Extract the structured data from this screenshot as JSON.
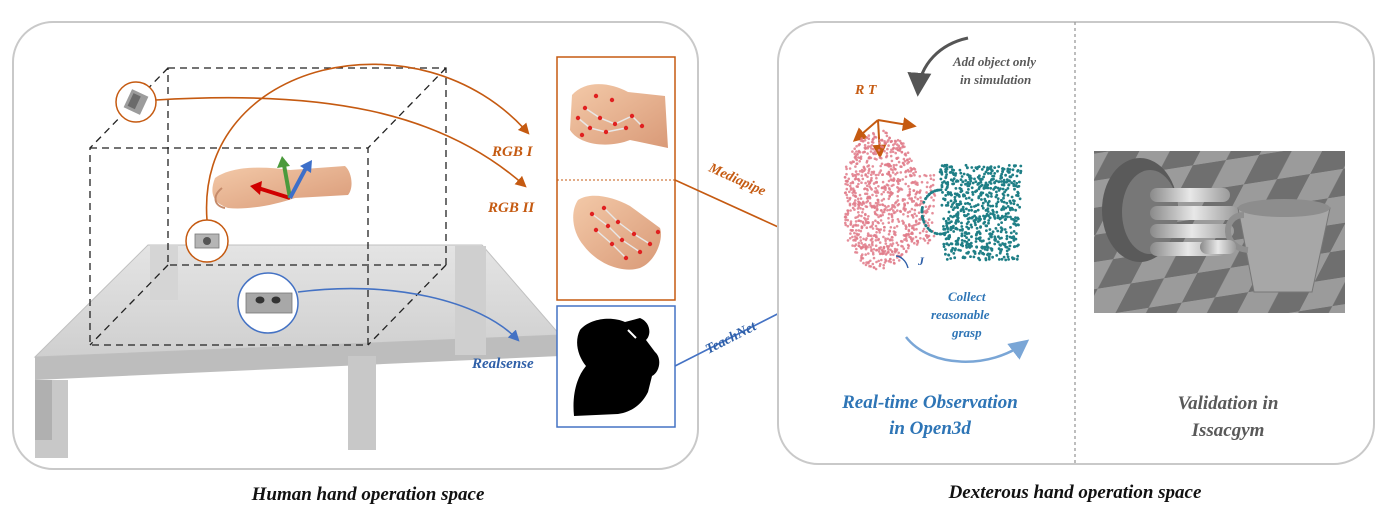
{
  "labels": {
    "rgb1": "RGB I",
    "rgb2": "RGB II",
    "realsense": "Realsense",
    "mediapipe": "Mediapipe",
    "teachnet": "TeachNet",
    "r_out": "R",
    "t_out": "T",
    "j_out": "J",
    "rt_frame": "R  T",
    "j_small": "J",
    "add_object_1": "Add object only",
    "add_object_2": "in simulation",
    "collect_1": "Collect",
    "collect_2": "reasonable",
    "collect_3": "grasp",
    "realtime_1": "Real-time Observation",
    "realtime_2": "in Open3d",
    "validation_1": "Validation in",
    "validation_2": "Issacgym"
  },
  "captions": {
    "left": "Human hand operation space",
    "right": "Dexterous hand operation space"
  },
  "colors": {
    "orange": "#c55a11",
    "blue": "#4472c4",
    "steel_blue": "#2e75b6",
    "grey_text": "#595959",
    "panel_border": "#c9c9c9",
    "pointcloud": "#e07b8a",
    "cup": "#1f7f86"
  }
}
